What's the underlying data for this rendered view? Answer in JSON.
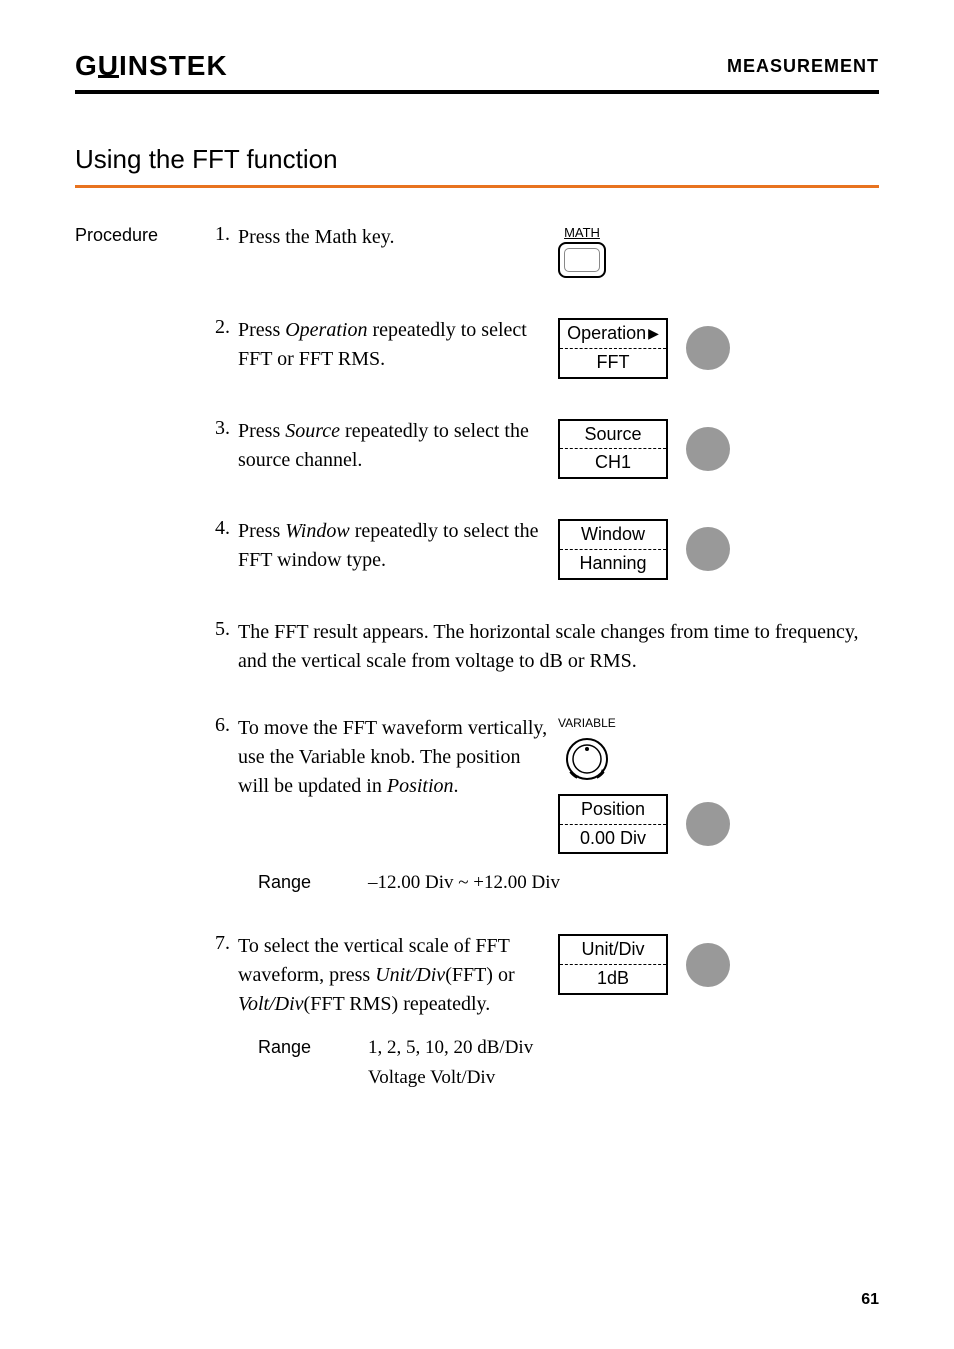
{
  "header": {
    "logo_text": "GWINSTEK",
    "title": "MEASUREMENT"
  },
  "section": {
    "title": "Using the FFT function"
  },
  "procedure_label": "Procedure",
  "steps": [
    {
      "num": "1.",
      "text_parts": [
        {
          "t": "Press the Math key.",
          "italic": false
        }
      ],
      "control_type": "math_key",
      "math_label": "MATH"
    },
    {
      "num": "2.",
      "text_parts": [
        {
          "t": "Press ",
          "italic": false
        },
        {
          "t": "Operation",
          "italic": true
        },
        {
          "t": " repeatedly to select FFT or FFT RMS.",
          "italic": false
        }
      ],
      "control_type": "softkey_arrow",
      "softkey_top": "Operation",
      "softkey_bottom": "FFT"
    },
    {
      "num": "3.",
      "text_parts": [
        {
          "t": "Press ",
          "italic": false
        },
        {
          "t": "Source",
          "italic": true
        },
        {
          "t": " repeatedly to select the source channel.",
          "italic": false
        }
      ],
      "control_type": "softkey",
      "softkey_top": "Source",
      "softkey_bottom": "CH1"
    },
    {
      "num": "4.",
      "text_parts": [
        {
          "t": "Press ",
          "italic": false
        },
        {
          "t": "Window",
          "italic": true
        },
        {
          "t": " repeatedly to select the FFT window type.",
          "italic": false
        }
      ],
      "control_type": "softkey",
      "softkey_top": "Window",
      "softkey_bottom": "Hanning"
    },
    {
      "num": "5.",
      "text_parts": [
        {
          "t": "The FFT result appears. The horizontal scale changes from time to frequency, and the vertical scale from voltage to dB or RMS.",
          "italic": false
        }
      ],
      "control_type": "none"
    },
    {
      "num": "6.",
      "text_parts": [
        {
          "t": "To move the FFT waveform vertically, use the Variable knob. The position will be updated in ",
          "italic": false
        },
        {
          "t": "Position",
          "italic": true
        },
        {
          "t": ".",
          "italic": false
        }
      ],
      "control_type": "variable_softkey",
      "variable_label": "VARIABLE",
      "softkey_top": "Position",
      "softkey_bottom": "0.00 Div",
      "range_label": "Range",
      "range_value": "–12.00 Div ~ +12.00 Div"
    },
    {
      "num": "7.",
      "text_parts": [
        {
          "t": "To select the vertical scale of FFT waveform, press ",
          "italic": false
        },
        {
          "t": "Unit/Div",
          "italic": true
        },
        {
          "t": "(FFT) or ",
          "italic": false
        },
        {
          "t": "Volt/Div",
          "italic": true
        },
        {
          "t": "(FFT RMS) repeatedly.",
          "italic": false
        }
      ],
      "control_type": "softkey",
      "softkey_top": "Unit/Div",
      "softkey_bottom": "1dB",
      "range_label": "Range",
      "range_value": "1, 2, 5, 10, 20 dB/Div",
      "range_value2": "Voltage Volt/Div"
    }
  ],
  "page_number": "61",
  "colors": {
    "accent": "#e8731f",
    "gray_circle": "#999999",
    "text": "#000000",
    "background": "#ffffff"
  }
}
